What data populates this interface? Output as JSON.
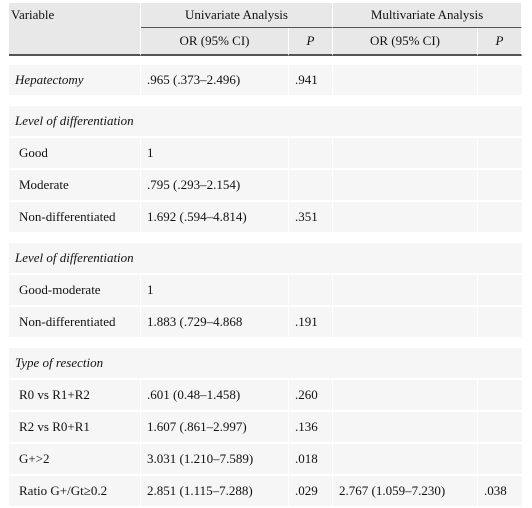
{
  "header": {
    "variable": "Variable",
    "univariate": "Univariate Analysis",
    "multivariate": "Multivariate Analysis",
    "or_label": "OR (95% CI)",
    "p_label": "P"
  },
  "rows": {
    "hepatectomy": {
      "label": "Hepatectomy",
      "or": ".965 (.373–2.496)",
      "p": ".941"
    },
    "sec1": "Level of differentiation",
    "good": {
      "label": "Good",
      "or": "1"
    },
    "moderate": {
      "label": "Moderate",
      "or": ".795 (.293–2.154)"
    },
    "nondiff1": {
      "label": "Non-differentiated",
      "or": "1.692 (.594–4.814)",
      "p": ".351"
    },
    "sec2": "Level of differentiation",
    "goodmod": {
      "label": "Good-moderate",
      "or": "1"
    },
    "nondiff2": {
      "label": "Non-differentiated",
      "or": "1.883 (.729–4.868",
      "p": ".191"
    },
    "sec3": "Type of resection",
    "r0": {
      "label": "R0 vs R1+R2",
      "or": ".601 (0.48–1.458)",
      "p": ".260"
    },
    "r2": {
      "label": "R2 vs R0+R1",
      "or": "1.607 (.861–2.997)",
      "p": ".136"
    },
    "g": {
      "label": "G+>2",
      "or": "3.031 (1.210–7.589)",
      "p": ".018"
    },
    "ratio": {
      "label": "Ratio G+/Gt≥0.2",
      "or": "2.851 (1.115–7.288)",
      "p": ".029",
      "mor": "2.767 (1.059–7.230)",
      "mp": ".038"
    }
  }
}
